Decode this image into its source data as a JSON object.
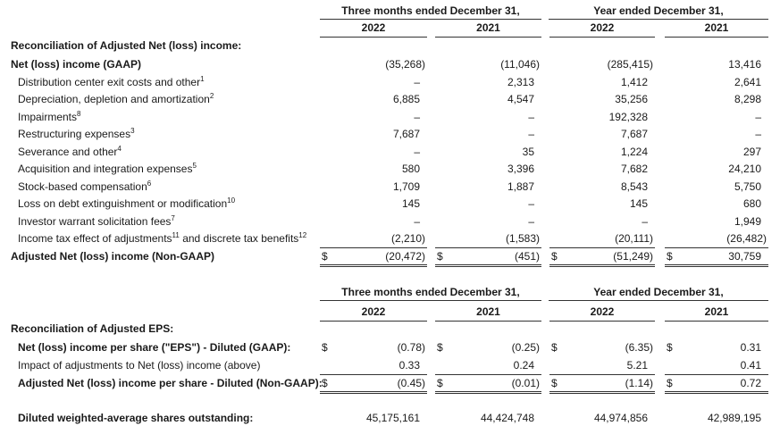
{
  "section1": {
    "header": {
      "group1": "Three months ended December 31,",
      "group2": "Year ended December 31,",
      "years": [
        "2022",
        "2021",
        "2022",
        "2021"
      ]
    },
    "title": "Reconciliation of Adjusted Net (loss) income:",
    "rows": [
      {
        "label": [
          "Net (loss) income (GAAP)"
        ],
        "bold": true,
        "values": [
          "(35,268)",
          "(11,046)",
          "(285,415)",
          "13,416"
        ]
      },
      {
        "label": [
          "Distribution center exit costs and other",
          {
            "sup": "1"
          }
        ],
        "values": [
          "–",
          "2,313",
          "1,412",
          "2,641"
        ]
      },
      {
        "label": [
          "Depreciation, depletion and amortization",
          {
            "sup": "2"
          }
        ],
        "values": [
          "6,885",
          "4,547",
          "35,256",
          "8,298"
        ]
      },
      {
        "label": [
          "Impairments",
          {
            "sup": "8"
          }
        ],
        "values": [
          "–",
          "–",
          "192,328",
          "–"
        ]
      },
      {
        "label": [
          "Restructuring expenses",
          {
            "sup": "3"
          }
        ],
        "values": [
          "7,687",
          "–",
          "7,687",
          "–"
        ]
      },
      {
        "label": [
          "Severance and other",
          {
            "sup": "4"
          }
        ],
        "values": [
          "–",
          "35",
          "1,224",
          "297"
        ]
      },
      {
        "label": [
          "Acquisition and integration expenses",
          {
            "sup": "5"
          }
        ],
        "values": [
          "580",
          "3,396",
          "7,682",
          "24,210"
        ]
      },
      {
        "label": [
          "Stock-based compensation",
          {
            "sup": "6"
          }
        ],
        "values": [
          "1,709",
          "1,887",
          "8,543",
          "5,750"
        ]
      },
      {
        "label": [
          "Loss on debt extinguishment or modification",
          {
            "sup": "10"
          }
        ],
        "values": [
          "145",
          "–",
          "145",
          "680"
        ]
      },
      {
        "label": [
          "Investor warrant solicitation fees",
          {
            "sup": "7"
          }
        ],
        "values": [
          "–",
          "–",
          "–",
          "1,949"
        ]
      },
      {
        "label": [
          "Income tax effect of adjustments",
          {
            "sup": "11"
          },
          " and discrete tax benefits",
          {
            "sup": "12"
          }
        ],
        "values": [
          "(2,210)",
          "(1,583)",
          "(20,111)",
          "(26,482)"
        ]
      },
      {
        "label": [
          "Adjusted Net (loss) income (Non-GAAP)"
        ],
        "bold": true,
        "total": true,
        "dollar_sign": "$",
        "values": [
          "(20,472)",
          "(451)",
          "(51,249)",
          "30,759"
        ]
      }
    ]
  },
  "section2": {
    "header": {
      "group1": "Three months ended December 31,",
      "group2": "Year ended December 31,",
      "years": [
        "2022",
        "2021",
        "2022",
        "2021"
      ]
    },
    "title": "Reconciliation of Adjusted EPS:",
    "rows": [
      {
        "label": [
          "Net (loss) income per share (\"EPS\") - Diluted (GAAP):"
        ],
        "bold": true,
        "dollar_sign": "$",
        "values": [
          "(0.78)",
          "(0.25)",
          "(6.35)",
          "0.31"
        ]
      },
      {
        "label": [
          "Impact of adjustments to Net (loss) income (above)"
        ],
        "values": [
          "0.33",
          "0.24",
          "5.21",
          "0.41"
        ]
      },
      {
        "label": [
          "Adjusted Net (loss) income per share - Diluted (Non-GAAP):"
        ],
        "bold": true,
        "total": true,
        "dollar_sign": "$",
        "values": [
          "(0.45)",
          "(0.01)",
          "(1.14)",
          "0.72"
        ]
      }
    ],
    "shares_row": {
      "label": [
        "Diluted weighted-average shares outstanding:"
      ],
      "bold": true,
      "values": [
        "45,175,161",
        "44,424,748",
        "44,974,856",
        "42,989,195"
      ]
    }
  }
}
